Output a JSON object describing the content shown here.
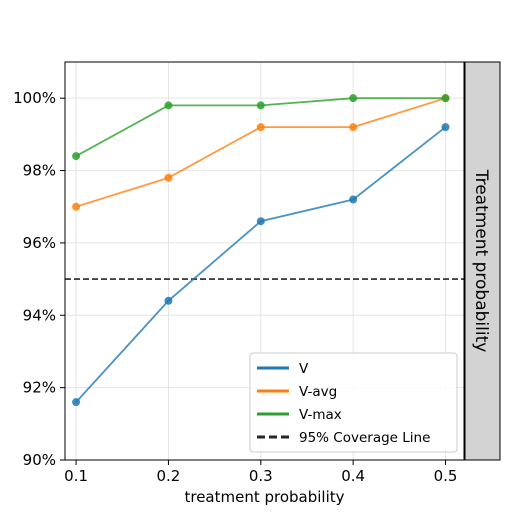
{
  "chart_data": {
    "type": "line",
    "title": "",
    "xlabel": "treatment probability",
    "ylabel": "",
    "facet_label": "Treatment probability",
    "x": [
      0.1,
      0.2,
      0.3,
      0.4,
      0.5
    ],
    "x_tick_labels": [
      "0.1",
      "0.2",
      "0.3",
      "0.4",
      "0.5"
    ],
    "xlim": [
      0.088,
      0.52
    ],
    "ylim": [
      90,
      101
    ],
    "y_ticks": [
      90,
      92,
      94,
      96,
      98,
      100
    ],
    "y_tick_labels": [
      "90%",
      "92%",
      "94%",
      "96%",
      "98%",
      "100%"
    ],
    "grid": true,
    "legend_position": "lower-right",
    "series": [
      {
        "name": "V",
        "color": "#1f77b4",
        "values": [
          91.6,
          94.4,
          96.6,
          97.2,
          99.2
        ]
      },
      {
        "name": "V-avg",
        "color": "#ff7f0e",
        "values": [
          97.0,
          97.8,
          99.2,
          99.2,
          100.0
        ]
      },
      {
        "name": "V-max",
        "color": "#2ca02c",
        "values": [
          98.4,
          99.8,
          99.8,
          100.0,
          100.0
        ]
      }
    ],
    "reference_lines": [
      {
        "name": "95% Coverage Line",
        "y": 95,
        "color": "#262626",
        "style": "dashed"
      }
    ]
  }
}
